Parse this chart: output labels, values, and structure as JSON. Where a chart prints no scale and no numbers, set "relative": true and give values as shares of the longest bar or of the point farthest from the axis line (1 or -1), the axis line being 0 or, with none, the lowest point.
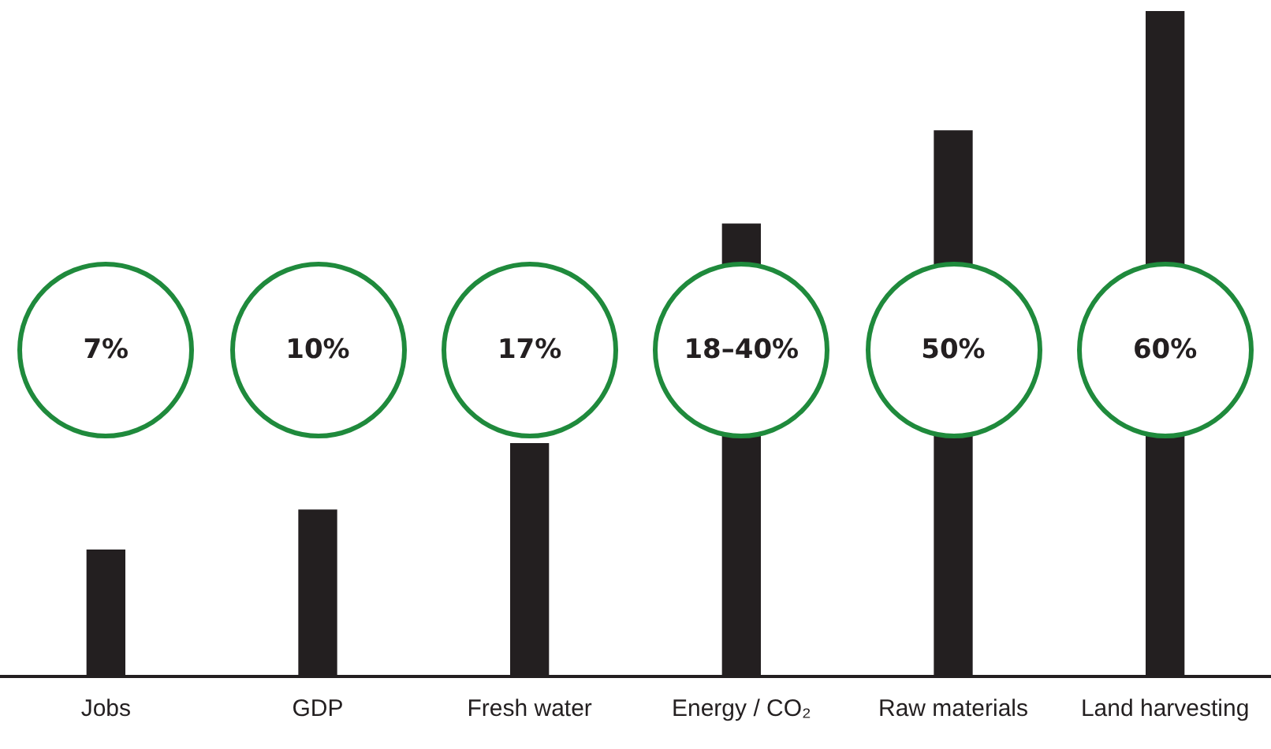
{
  "chart_data": {
    "type": "bar",
    "relative": true,
    "categories": [
      "Jobs",
      "GDP",
      "Fresh water",
      "Energy / CO₂",
      "Raw materials",
      "Land harvesting"
    ],
    "values": [
      0.19,
      0.25,
      0.35,
      0.68,
      0.82,
      1
    ],
    "annotations": [
      "7%",
      "10%",
      "17%",
      "18–40%",
      "50%",
      "60%"
    ],
    "color": "#231f20",
    "grid": false,
    "legend": false
  }
}
